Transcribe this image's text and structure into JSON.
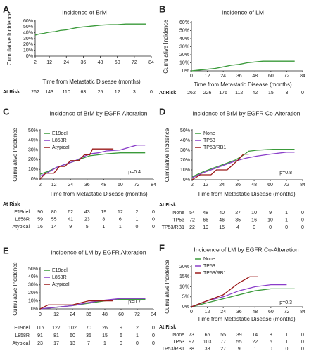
{
  "chart_data": [
    {
      "type": "line",
      "panel": "A",
      "title": "Incidence of BrM",
      "ylabel": "Cumulative Incidence",
      "xlabel": "Time from Metastatic Disease (months)",
      "xlim": [
        2,
        84
      ],
      "ylim": [
        0,
        60
      ],
      "xticks": [
        2,
        12,
        24,
        36,
        48,
        60,
        72,
        84
      ],
      "yticks": [
        {
          "value": 0,
          "label": "0%"
        },
        {
          "value": 10,
          "label": "10%"
        },
        {
          "value": 20,
          "label": "20%"
        },
        {
          "value": 30,
          "label": "30%"
        },
        {
          "value": 40,
          "label": "40%"
        },
        {
          "value": 50,
          "label": "50%"
        },
        {
          "value": 60,
          "label": "60%"
        }
      ],
      "series": [
        {
          "color": "#3a9a3a",
          "x": [
            2,
            5,
            8,
            12,
            16,
            20,
            24,
            28,
            32,
            36,
            40,
            44,
            48,
            55,
            60,
            66,
            80
          ],
          "values": [
            36,
            38,
            39,
            41,
            42,
            44,
            45,
            47,
            49,
            50,
            51,
            52,
            53,
            54,
            54,
            55,
            55
          ]
        }
      ],
      "risk_title": "At Risk",
      "risk": [
        {
          "values": [
            262,
            143,
            110,
            63,
            25,
            12,
            3,
            0
          ]
        }
      ]
    },
    {
      "type": "line",
      "panel": "B",
      "title": "Incidence of LM",
      "ylabel": "Cumulative Incidence",
      "xlabel": "Time from Metastatic Disease (months)",
      "xlim": [
        0,
        84
      ],
      "ylim": [
        0,
        60
      ],
      "xticks": [
        0,
        12,
        24,
        36,
        48,
        60,
        72,
        84
      ],
      "yticks": [
        {
          "value": 0,
          "label": "0%"
        },
        {
          "value": 10,
          "label": "10%"
        },
        {
          "value": 20,
          "label": "20%"
        },
        {
          "value": 30,
          "label": "30%"
        },
        {
          "value": 40,
          "label": "40%"
        },
        {
          "value": 50,
          "label": "50%"
        },
        {
          "value": 60,
          "label": "60%"
        }
      ],
      "series": [
        {
          "color": "#3a9a3a",
          "x": [
            0,
            6,
            12,
            18,
            24,
            30,
            36,
            42,
            48,
            54,
            78
          ],
          "values": [
            0,
            1,
            2,
            3,
            5,
            7,
            8,
            10,
            11,
            12,
            12
          ]
        }
      ],
      "risk_title": "At Risk",
      "risk": [
        {
          "values": [
            262,
            226,
            176,
            112,
            42,
            15,
            3,
            0
          ]
        }
      ]
    },
    {
      "type": "line",
      "panel": "C",
      "title": "Incidence of BrM by EGFR Alteration",
      "ylabel": "Cumulative Incidence",
      "xlabel": "Time from Metastatic Disease (months)",
      "xlim": [
        2,
        84
      ],
      "ylim": [
        0,
        50
      ],
      "xticks": [
        2,
        12,
        24,
        36,
        48,
        60,
        72,
        84
      ],
      "yticks": [
        {
          "value": 0,
          "label": "0%"
        },
        {
          "value": 10,
          "label": "10%"
        },
        {
          "value": 20,
          "label": "20%"
        },
        {
          "value": 30,
          "label": "30%"
        },
        {
          "value": 40,
          "label": "40%"
        },
        {
          "value": 50,
          "label": "50%"
        }
      ],
      "series": [
        {
          "name": "E19del",
          "color": "#3a9a3a",
          "x": [
            2,
            8,
            14,
            20,
            26,
            32,
            38,
            44,
            50,
            60,
            78
          ],
          "values": [
            5,
            8,
            12,
            15,
            18,
            21,
            24,
            25,
            26,
            27,
            27
          ]
        },
        {
          "name": "L858R",
          "color": "#8a3dc9",
          "x": [
            2,
            8,
            14,
            20,
            26,
            32,
            38,
            44,
            50,
            60,
            72,
            78
          ],
          "values": [
            3,
            7,
            12,
            15,
            18,
            22,
            26,
            27,
            29,
            30,
            35,
            35
          ]
        },
        {
          "name": "Atypical",
          "color": "#9b1a1a",
          "x": [
            2,
            6,
            12,
            16,
            20,
            24,
            30,
            34,
            38,
            40,
            55
          ],
          "values": [
            0,
            6,
            6,
            13,
            13,
            19,
            19,
            25,
            25,
            31,
            31
          ]
        }
      ],
      "pvalue": "p=0.4",
      "legend": "upper left",
      "risk_title": "At Risk",
      "risk": [
        {
          "name": "E19del",
          "values": [
            90,
            80,
            62,
            43,
            19,
            12,
            2,
            0
          ]
        },
        {
          "name": "L858R",
          "values": [
            59,
            55,
            41,
            23,
            8,
            6,
            1,
            0
          ]
        },
        {
          "name": "Atypical",
          "values": [
            16,
            14,
            9,
            5,
            1,
            1,
            0,
            0
          ]
        }
      ]
    },
    {
      "type": "line",
      "panel": "D",
      "title": "Incidence of BrM by EGFR Co-Alteration",
      "ylabel": "Cumulative Incidence",
      "xlabel": "Time from Metastatic Disease (months)",
      "xlim": [
        2,
        84
      ],
      "ylim": [
        0,
        50
      ],
      "xticks": [
        2,
        12,
        24,
        36,
        48,
        60,
        72,
        84
      ],
      "yticks": [
        {
          "value": 0,
          "label": "0%"
        },
        {
          "value": 10,
          "label": "10%"
        },
        {
          "value": 20,
          "label": "20%"
        },
        {
          "value": 30,
          "label": "30%"
        },
        {
          "value": 40,
          "label": "40%"
        },
        {
          "value": 50,
          "label": "50%"
        }
      ],
      "series": [
        {
          "name": "None",
          "color": "#3a9a3a",
          "x": [
            2,
            10,
            18,
            26,
            34,
            40,
            44,
            50,
            62,
            78
          ],
          "values": [
            3,
            8,
            12,
            16,
            20,
            25,
            29,
            30,
            31,
            31
          ]
        },
        {
          "name": "TP53",
          "color": "#8a3dc9",
          "x": [
            2,
            10,
            18,
            26,
            34,
            42,
            50,
            60,
            72,
            78
          ],
          "values": [
            2,
            7,
            11,
            15,
            19,
            22,
            24,
            26,
            28,
            28
          ]
        },
        {
          "name": "TP53/RB1",
          "color": "#9b1a1a",
          "x": [
            2,
            8,
            16,
            20,
            28,
            32,
            36,
            40,
            44
          ],
          "values": [
            0,
            5,
            5,
            10,
            10,
            15,
            20,
            26,
            26
          ]
        }
      ],
      "pvalue": "p=0.8",
      "legend": "upper left",
      "risk_title": "At Risk",
      "risk": [
        {
          "name": "None",
          "values": [
            54,
            48,
            40,
            27,
            10,
            9,
            1,
            0
          ]
        },
        {
          "name": "TP53",
          "values": [
            72,
            66,
            46,
            35,
            16,
            10,
            1,
            0
          ]
        },
        {
          "name": "TP53/RB1",
          "values": [
            22,
            19,
            15,
            4,
            0,
            0,
            0,
            0
          ]
        }
      ]
    },
    {
      "type": "line",
      "panel": "E",
      "title": "Incidence of LM by EGFR Alteration",
      "ylabel": "Cumulative Incidence",
      "xlim": [
        0,
        84
      ],
      "ylim": [
        0,
        50
      ],
      "xticks": [
        0,
        12,
        24,
        36,
        48,
        60,
        72,
        84
      ],
      "yticks": [
        {
          "value": 0,
          "label": "0%"
        },
        {
          "value": 10,
          "label": "10%"
        },
        {
          "value": 20,
          "label": "20%"
        },
        {
          "value": 30,
          "label": "30%"
        },
        {
          "value": 40,
          "label": "40%"
        },
        {
          "value": 50,
          "label": "50%"
        }
      ],
      "series": [
        {
          "name": "E19del",
          "color": "#3a9a3a",
          "x": [
            0,
            12,
            24,
            36,
            48,
            60,
            78
          ],
          "values": [
            0,
            2,
            4,
            7,
            10,
            12,
            12
          ]
        },
        {
          "name": "L858R",
          "color": "#8a3dc9",
          "x": [
            0,
            12,
            24,
            36,
            48,
            60,
            78
          ],
          "values": [
            0,
            2,
            4,
            8,
            11,
            13,
            13
          ]
        },
        {
          "name": "Atypical",
          "color": "#9b1a1a",
          "x": [
            0,
            6,
            24,
            36,
            54
          ],
          "values": [
            0,
            5,
            5,
            10,
            10
          ]
        }
      ],
      "pvalue": "p=0.7",
      "legend": "upper left",
      "risk": [
        {
          "name": "E19del",
          "values": [
            116,
            127,
            102,
            70,
            26,
            9,
            2,
            0
          ]
        },
        {
          "name": "L858R",
          "values": [
            91,
            81,
            60,
            35,
            15,
            6,
            1,
            0
          ]
        },
        {
          "name": "Atypical",
          "values": [
            23,
            17,
            13,
            7,
            1,
            0,
            0,
            0
          ]
        }
      ]
    },
    {
      "type": "line",
      "panel": "F",
      "title": "Incidence of LM by EGFR Co-Alteration",
      "ylabel": "Cumulative Incidence",
      "xlabel": "Time from Metastatic Disease (months)",
      "xlim": [
        0,
        84
      ],
      "ylim": [
        0,
        20
      ],
      "xticks": [
        0,
        12,
        24,
        36,
        48,
        60,
        72,
        84
      ],
      "yticks": [
        {
          "value": 0,
          "label": "0%"
        },
        {
          "value": 5,
          "label": "5%"
        },
        {
          "value": 10,
          "label": "10%"
        },
        {
          "value": 15,
          "label": "15%"
        },
        {
          "value": 20,
          "label": "20%"
        }
      ],
      "series": [
        {
          "name": "None",
          "color": "#3a9a3a",
          "x": [
            0,
            12,
            24,
            36,
            48,
            60,
            78
          ],
          "values": [
            0,
            2,
            4,
            6,
            8,
            9,
            9
          ]
        },
        {
          "name": "TP53",
          "color": "#8a3dc9",
          "x": [
            0,
            12,
            24,
            36,
            48,
            60,
            72
          ],
          "values": [
            0,
            3,
            5,
            8,
            10,
            11,
            11
          ]
        },
        {
          "name": "TP53/RB1",
          "color": "#9b1a1a",
          "x": [
            0,
            12,
            24,
            36,
            44,
            50
          ],
          "values": [
            0,
            3,
            6,
            12,
            15,
            15
          ]
        }
      ],
      "pvalue": "p=0.3",
      "legend": "upper left",
      "risk_title": "At Risk",
      "risk": [
        {
          "name": "None",
          "values": [
            73,
            66,
            55,
            39,
            14,
            8,
            1,
            0
          ]
        },
        {
          "name": "TP53",
          "values": [
            97,
            103,
            77,
            55,
            22,
            5,
            1,
            0
          ]
        },
        {
          "name": "TP53/RB1",
          "values": [
            38,
            33,
            27,
            9,
            1,
            0,
            0,
            0
          ]
        }
      ]
    }
  ]
}
